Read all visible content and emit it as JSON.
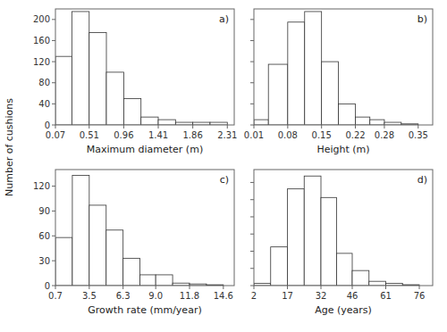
{
  "chart_data": [
    {
      "type": "histogram",
      "title": "a)",
      "xlabel": "Maximum diameter (m)",
      "ylabel": "Number of cushions",
      "bins": [
        0.07,
        0.284,
        0.51,
        0.734,
        0.96,
        1.185,
        1.41,
        1.635,
        1.86,
        2.085,
        2.31
      ],
      "values": [
        130,
        215,
        175,
        100,
        50,
        15,
        10,
        5,
        5,
        5
      ],
      "color": "#ffffff",
      "xlim": [
        0.07,
        2.4
      ],
      "ylim": [
        0,
        220
      ],
      "xticks": [
        0.07,
        0.51,
        0.96,
        1.41,
        1.86,
        2.31
      ],
      "yticks": [
        0,
        40,
        80,
        120,
        160,
        200
      ]
    },
    {
      "type": "histogram",
      "title": "b)",
      "xlabel": "Height (m)",
      "bins": [
        0.01,
        0.04,
        0.08,
        0.115,
        0.15,
        0.185,
        0.22,
        0.25,
        0.28,
        0.315,
        0.35
      ],
      "values": [
        10,
        115,
        195,
        215,
        120,
        40,
        15,
        10,
        5,
        2
      ],
      "color": "#ffffff",
      "xlim": [
        0.01,
        0.38
      ],
      "ylim": [
        0,
        220
      ],
      "xticks": [
        0.01,
        0.08,
        0.15,
        0.22,
        0.28,
        0.35
      ],
      "yticks": [
        0,
        40,
        80,
        120,
        160,
        200
      ],
      "tick_labels": "x"
    },
    {
      "type": "histogram",
      "title": "c)",
      "xlabel": "Growth rate (mm/year)",
      "bins": [
        0.7,
        2.1,
        3.5,
        4.9,
        6.3,
        7.7,
        9.0,
        10.4,
        11.8,
        13.2,
        14.6
      ],
      "values": [
        58,
        133,
        97,
        67,
        33,
        13,
        13,
        3,
        2,
        1
      ],
      "color": "#ffffff",
      "xlim": [
        0.7,
        15.5
      ],
      "ylim": [
        0,
        140
      ],
      "xticks": [
        0.7,
        3.5,
        6.3,
        {
          "value": 9.0,
          "label": "9.0"
        },
        11.8,
        14.6
      ],
      "yticks": [
        0,
        30,
        60,
        90,
        120
      ]
    },
    {
      "type": "histogram",
      "title": "d)",
      "xlabel": "Age (years)",
      "bins": [
        2,
        9.5,
        17,
        24.5,
        32,
        39,
        46,
        53.5,
        61,
        68.5,
        76
      ],
      "values": [
        5,
        90,
        225,
        255,
        205,
        75,
        35,
        10,
        5,
        2
      ],
      "color": "#ffffff",
      "xlim": [
        2,
        82
      ],
      "ylim": [
        0,
        270
      ],
      "xticks": [
        2,
        17,
        32,
        46,
        61,
        76
      ],
      "yticks": [
        0,
        40,
        80,
        120,
        160,
        200,
        240
      ],
      "tick_labels": "x"
    }
  ]
}
